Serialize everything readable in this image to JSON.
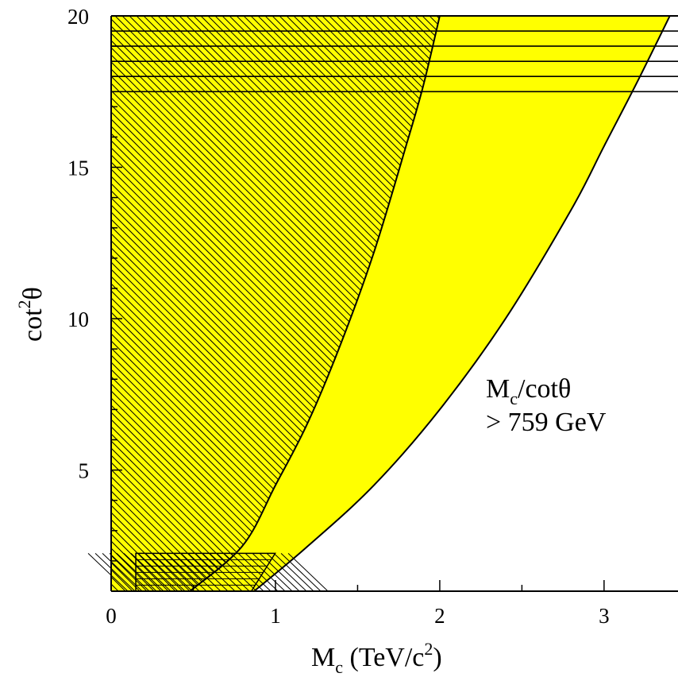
{
  "chart_data": {
    "type": "area",
    "title": "",
    "xlabel": {
      "main": "M",
      "sub": "c",
      "rest": " (TeV/c",
      "sup": "2",
      "end": ")"
    },
    "ylabel": {
      "main": "cot",
      "sup": "2",
      "end": "θ"
    },
    "xlim": [
      0,
      3.45
    ],
    "ylim": [
      1,
      20
    ],
    "xticks": [
      "0",
      "1",
      "2",
      "3"
    ],
    "yticks": [
      "5",
      "10",
      "15",
      "20"
    ],
    "grid": false,
    "annotation": [
      "M",
      "c",
      "/cotθ",
      "> 759 GeV"
    ],
    "colors": {
      "fill": "#ffff00",
      "line": "#000000"
    },
    "regions": [
      {
        "type": "excluded-band",
        "fill": "yellow",
        "inner_boundary": {
          "M_c_TeV": [
            0.48,
            0.8,
            1.0,
            1.2,
            1.4,
            1.6,
            1.8,
            1.9,
            2.0
          ],
          "cot2theta": [
            1.0,
            2.5,
            4.5,
            6.6,
            9.2,
            12.2,
            15.8,
            17.7,
            20.0
          ]
        },
        "outer_boundary": {
          "M_c_TeV": [
            0.87,
            1.2,
            1.6,
            2.0,
            2.4,
            2.8,
            3.0,
            3.2,
            3.4
          ],
          "cot2theta": [
            1.0,
            2.5,
            4.5,
            7.0,
            10.0,
            13.6,
            15.7,
            17.8,
            20.0
          ]
        }
      },
      {
        "type": "diagonal-hatch",
        "M_c_TeV": [
          0,
          2.0
        ],
        "cot2theta_top": 20
      },
      {
        "type": "horizontal-lines",
        "cot2theta": [
          17.5,
          18.0,
          18.5,
          19.0,
          19.5,
          20.0
        ],
        "M_c_TeV": [
          0,
          3.45
        ]
      },
      {
        "type": "horizontal-hatch-box",
        "M_c_TeV": [
          0.15,
          0.95
        ],
        "cot2theta": [
          1.0,
          2.25
        ]
      }
    ]
  }
}
